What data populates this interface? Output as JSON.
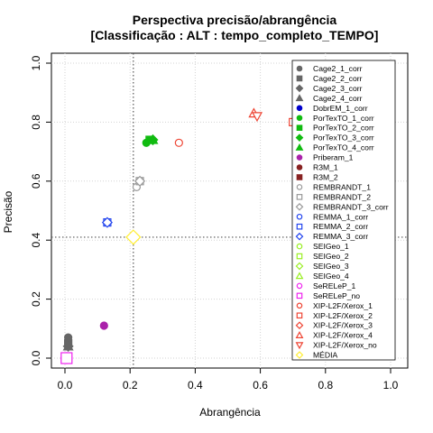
{
  "chart_data": {
    "type": "scatter",
    "title": "Perspectiva precisão/abrangência",
    "subtitle": "[Classificação : ALT : tempo_completo_TEMPO]",
    "xlabel": "Abrangência",
    "ylabel": "Precisão",
    "xlim": [
      0,
      1
    ],
    "ylim": [
      0,
      1
    ],
    "x_ticks": [
      "0.0",
      "0.2",
      "0.4",
      "0.6",
      "0.8",
      "1.0"
    ],
    "y_ticks": [
      "0.0",
      "0.2",
      "0.4",
      "0.6",
      "0.8",
      "1.0"
    ],
    "grid": true,
    "legend_position": "right",
    "reference_lines": {
      "x": 0.21,
      "y": 0.41
    },
    "series": [
      {
        "name": "Cage2_1_corr",
        "color": "#666666",
        "shape": "circle",
        "x": 0.01,
        "y": 0.07
      },
      {
        "name": "Cage2_2_corr",
        "color": "#666666",
        "shape": "square",
        "x": 0.01,
        "y": 0.05
      },
      {
        "name": "Cage2_3_corr",
        "color": "#666666",
        "shape": "diamond",
        "x": 0.01,
        "y": 0.04
      },
      {
        "name": "Cage2_4_corr",
        "color": "#666666",
        "shape": "triangle",
        "x": 0.01,
        "y": 0.04
      },
      {
        "name": "DobrEM_1_corr",
        "color": "#0000cc",
        "shape": "circle",
        "x": 0.005,
        "y": 0.0
      },
      {
        "name": "PorTexTO_1_corr",
        "color": "#11bb11",
        "shape": "circle",
        "x": 0.25,
        "y": 0.73
      },
      {
        "name": "PorTexTO_2_corr",
        "color": "#11bb11",
        "shape": "square",
        "x": 0.26,
        "y": 0.74
      },
      {
        "name": "PorTexTO_3_corr",
        "color": "#11bb11",
        "shape": "diamond",
        "x": 0.27,
        "y": 0.74
      },
      {
        "name": "PorTexTO_4_corr",
        "color": "#11bb11",
        "shape": "triangle",
        "x": 0.27,
        "y": 0.74
      },
      {
        "name": "Priberam_1",
        "color": "#aa22aa",
        "shape": "circle",
        "x": 0.12,
        "y": 0.11
      },
      {
        "name": "R3M_1",
        "color": "#882222",
        "shape": "circle",
        "x": null,
        "y": null
      },
      {
        "name": "R3M_2",
        "color": "#882222",
        "shape": "square",
        "x": null,
        "y": null
      },
      {
        "name": "REMBRANDT_1",
        "color": "#999999",
        "shape": "circle",
        "x": 0.22,
        "y": 0.58
      },
      {
        "name": "REMBRANDT_2",
        "color": "#999999",
        "shape": "square",
        "x": 0.23,
        "y": 0.6
      },
      {
        "name": "REMBRANDT_3_corr",
        "color": "#999999",
        "shape": "diamond",
        "x": 0.23,
        "y": 0.6
      },
      {
        "name": "REMMA_1_corr",
        "color": "#2244ee",
        "shape": "circle",
        "x": 0.13,
        "y": 0.46
      },
      {
        "name": "REMMA_2_corr",
        "color": "#2244ee",
        "shape": "square",
        "x": 0.13,
        "y": 0.46
      },
      {
        "name": "REMMA_3_corr",
        "color": "#2244ee",
        "shape": "diamond",
        "x": 0.13,
        "y": 0.46
      },
      {
        "name": "SEIGeo_1",
        "color": "#99ee22",
        "shape": "circle",
        "x": null,
        "y": null
      },
      {
        "name": "SEIGeo_2",
        "color": "#99ee22",
        "shape": "square",
        "x": null,
        "y": null
      },
      {
        "name": "SEIGeo_3",
        "color": "#99ee22",
        "shape": "diamond",
        "x": null,
        "y": null
      },
      {
        "name": "SEIGeo_4",
        "color": "#99ee22",
        "shape": "triangle",
        "x": null,
        "y": null
      },
      {
        "name": "SeRELeP_1",
        "color": "#ee22ee",
        "shape": "circle",
        "x": 0.005,
        "y": 0.0
      },
      {
        "name": "SeRELeP_no",
        "color": "#ee22ee",
        "shape": "square",
        "x": 0.005,
        "y": 0.0
      },
      {
        "name": "XIP-L2F/Xerox_1",
        "color": "#ee4433",
        "shape": "circle",
        "x": 0.35,
        "y": 0.73
      },
      {
        "name": "XIP-L2F/Xerox_2",
        "color": "#ee4433",
        "shape": "square",
        "x": 0.7,
        "y": 0.8
      },
      {
        "name": "XIP-L2F/Xerox_3",
        "color": "#ee4433",
        "shape": "diamond",
        "x": null,
        "y": null
      },
      {
        "name": "XIP-L2F/Xerox_4",
        "color": "#ee4433",
        "shape": "triangle",
        "x": 0.58,
        "y": 0.83
      },
      {
        "name": "XIP-L2F/Xerox_no",
        "color": "#ee4433",
        "shape": "triangle-down",
        "x": 0.59,
        "y": 0.82
      },
      {
        "name": "MÉDIA",
        "color": "#ffee33",
        "shape": "diamond",
        "x": 0.21,
        "y": 0.41
      }
    ]
  }
}
